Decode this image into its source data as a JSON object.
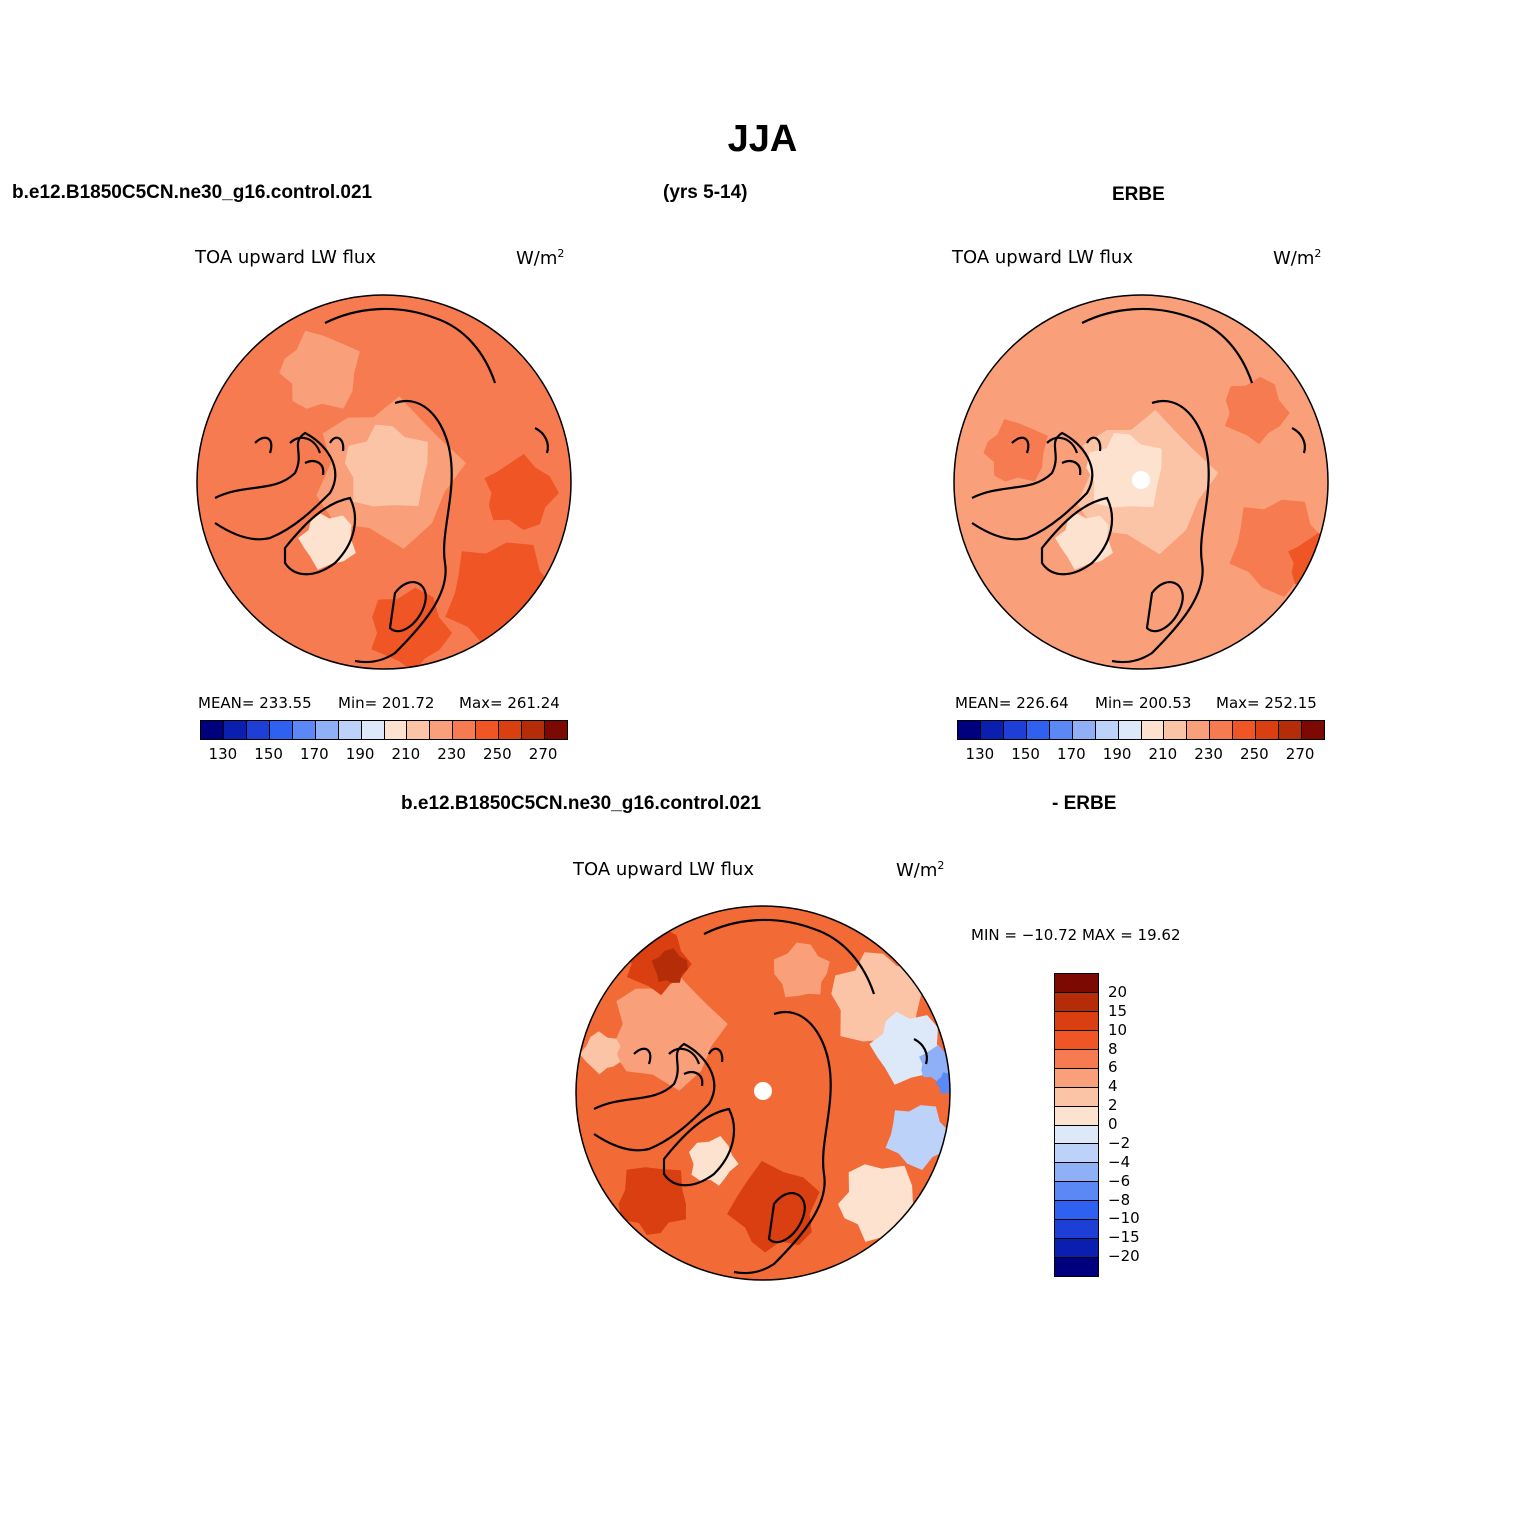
{
  "title": "JJA",
  "header": {
    "model": "b.e12.B1850C5CN.ne30_g16.control.021",
    "years": "(yrs 5-14)",
    "obs": "ERBE"
  },
  "diff_header": {
    "model": "b.e12.B1850C5CN.ne30_g16.control.021",
    "obs": "- ERBE"
  },
  "panels": [
    {
      "variable": "TOA upward LW flux",
      "units_base": "W/m",
      "units_exp": "2",
      "stats": {
        "mean_label": "MEAN= 233.55",
        "min_label": "Min= 201.72",
        "max_label": "Max= 261.24"
      },
      "polar_gap": false
    },
    {
      "variable": "TOA upward LW flux",
      "units_base": "W/m",
      "units_exp": "2",
      "stats": {
        "mean_label": "MEAN= 226.64",
        "min_label": "Min= 200.53",
        "max_label": "Max= 252.15"
      },
      "polar_gap": true
    },
    {
      "variable": "TOA upward LW flux",
      "units_base": "W/m",
      "units_exp": "2",
      "stats": {
        "minmax_label": "MIN = −10.72 MAX =  19.62"
      },
      "polar_gap": true
    }
  ],
  "colorbar_abs": {
    "colors": [
      "#00007f",
      "#0a1fb0",
      "#1e3fd6",
      "#2f61f0",
      "#5a88f5",
      "#8fb0f7",
      "#bcd2f8",
      "#dde9f8",
      "#fde3cf",
      "#fcc4a6",
      "#f9a07a",
      "#f67b50",
      "#f05526",
      "#d93f10",
      "#b42c08",
      "#7d0a02"
    ],
    "ticks": [
      "130",
      "150",
      "170",
      "190",
      "210",
      "230",
      "250",
      "270"
    ]
  },
  "colorbar_diff": {
    "colors": [
      "#7d0a02",
      "#b42c08",
      "#d93f10",
      "#f05526",
      "#f67b50",
      "#f9a07a",
      "#fcc4a6",
      "#fde3cf",
      "#dde9f8",
      "#bcd2f8",
      "#8fb0f7",
      "#5a88f5",
      "#2f61f0",
      "#1e3fd6",
      "#0a1fb0",
      "#00007f"
    ],
    "ticks": [
      "20",
      "15",
      "10",
      "8",
      "6",
      "4",
      "2",
      "0",
      "−2",
      "−4",
      "−6",
      "−8",
      "−10",
      "−15",
      "−20"
    ]
  }
}
